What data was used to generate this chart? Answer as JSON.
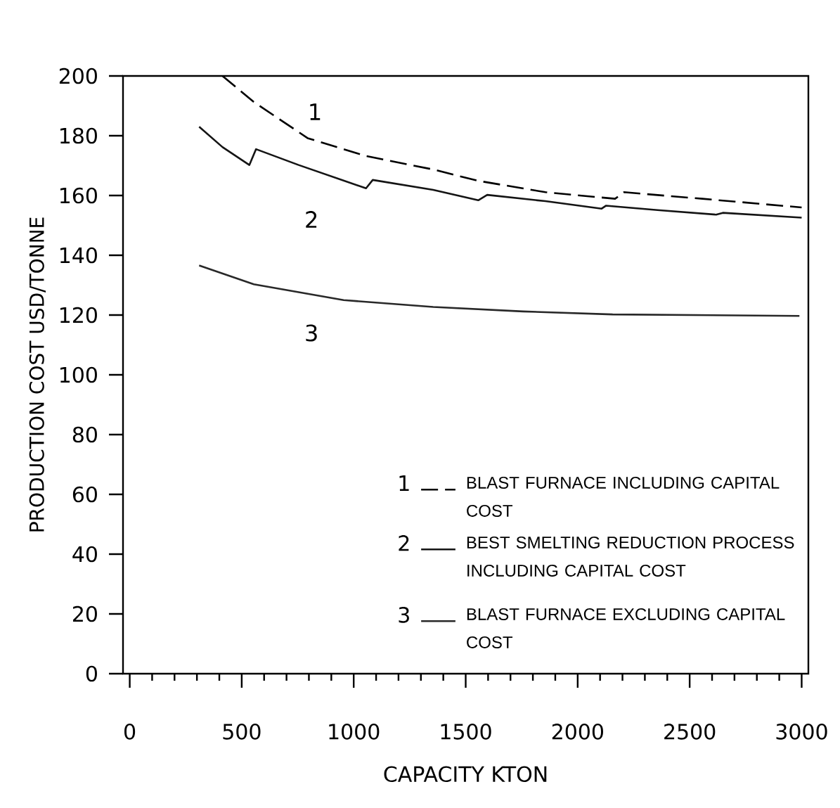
{
  "chart_data": {
    "type": "line",
    "xlabel": "CAPACITY KTON",
    "ylabel": "PRODUCTION COST USD/TONNE",
    "xlim": [
      -30,
      3030
    ],
    "ylim": [
      0,
      200
    ],
    "xticks": [
      0,
      500,
      1000,
      1500,
      2000,
      2500,
      3000
    ],
    "yticks": [
      0,
      20,
      40,
      60,
      80,
      100,
      120,
      140,
      160,
      180,
      200
    ],
    "legend": "bottom right",
    "marker": "none",
    "grid": false,
    "series": [
      {
        "name": "BLAST FURNACE INCLUDING  CAPITAL COST",
        "color": "#000000",
        "line_style": "dashed",
        "x": [
          414,
          554,
          794,
          1055,
          1355,
          1556,
          1856,
          2167,
          2207,
          2557,
          3000
        ],
        "values": [
          200,
          191.3,
          179.2,
          173.2,
          168.7,
          164.9,
          161.1,
          158.9,
          161.1,
          158.9,
          156
        ]
      },
      {
        "name": "BEST SMELTING  REDUCTION PROCESS INCLUDING  CAPITAL COST",
        "color": "#141414",
        "line_style": "solid",
        "x": [
          310,
          414,
          534,
          564,
          754,
          1055,
          1085,
          1355,
          1556,
          1596,
          1856,
          2107,
          2127,
          2357,
          2618,
          2648,
          3000
        ],
        "values": [
          183,
          176.2,
          170.2,
          175.5,
          170.2,
          162.4,
          165.2,
          161.9,
          158.4,
          160.2,
          158.1,
          155.6,
          156.6,
          155.1,
          153.6,
          154.2,
          152.6
        ]
      },
      {
        "name": "BLAST FURNACE EXCLUDING CAPITAL COST",
        "color": "#282828",
        "line_style": "solid",
        "x": [
          310,
          554,
          955,
          1355,
          1756,
          2156,
          2990
        ],
        "values": [
          136.6,
          130.3,
          125,
          122.7,
          121.2,
          120.2,
          119.7
        ]
      }
    ],
    "annotations": [
      "1",
      "2",
      "3",
      "1",
      "2",
      "3"
    ]
  }
}
